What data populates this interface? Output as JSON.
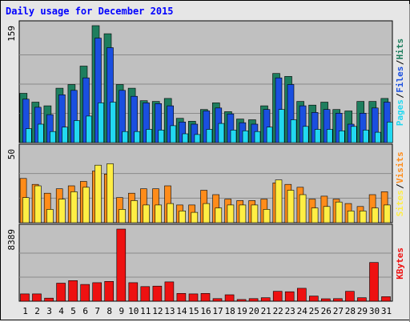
{
  "chart_data": {
    "title": "Daily usage for December 2015",
    "type": "bar",
    "categories": [
      "1",
      "2",
      "3",
      "4",
      "5",
      "6",
      "7",
      "8",
      "9",
      "10",
      "11",
      "12",
      "13",
      "14",
      "15",
      "16",
      "17",
      "18",
      "19",
      "20",
      "21",
      "22",
      "23",
      "24",
      "25",
      "26",
      "27",
      "28",
      "29",
      "30",
      "31"
    ],
    "weekend_days": [
      "5",
      "6",
      "12",
      "13",
      "19",
      "20",
      "26",
      "27"
    ],
    "colors": {
      "hits": "#1e7e5e",
      "files": "#1a4fe0",
      "pages": "#22d8f0",
      "visits": "#ff8c1a",
      "sites": "#ffee44",
      "kbytes": "#ee1111",
      "weekday_label": "#000000",
      "weekend_label": "#1a7a5a",
      "panel_bg": "#c0c0c0",
      "grid": "#8a8a8a"
    },
    "panels": [
      {
        "id": "top",
        "ymax_label": "159",
        "ymax": 159,
        "legend": [
          "Pages",
          "Files",
          "Hits"
        ],
        "legend_colors": [
          "#22d8f0",
          "#1a4fe0",
          "#1e7e5e"
        ],
        "series": [
          {
            "name": "Hits",
            "values": [
              67,
              55,
              50,
              74,
              79,
              104,
              159,
              148,
              79,
              74,
              57,
              56,
              60,
              33,
              29,
              45,
              54,
              42,
              32,
              31,
              50,
              94,
              90,
              56,
              51,
              55,
              45,
              43,
              56,
              56,
              60
            ]
          },
          {
            "name": "Files",
            "values": [
              59,
              48,
              38,
              65,
              71,
              88,
              142,
              129,
              71,
              63,
              54,
              53,
              50,
              28,
              25,
              43,
              47,
              39,
              27,
              25,
              45,
              88,
              79,
              50,
              41,
              45,
              40,
              25,
              40,
              47,
              55
            ]
          },
          {
            "name": "Pages",
            "values": [
              19,
              25,
              15,
              21,
              30,
              36,
              54,
              55,
              15,
              15,
              18,
              17,
              23,
              12,
              11,
              18,
              26,
              17,
              16,
              15,
              21,
              45,
              31,
              22,
              18,
              18,
              16,
              22,
              17,
              14,
              28
            ]
          }
        ]
      },
      {
        "id": "middle",
        "ymax_label": "50",
        "ymax": 50,
        "legend": [
          "Sites",
          "Visits"
        ],
        "legend_colors": [
          "#ffee44",
          "#ff8c1a"
        ],
        "series": [
          {
            "name": "Visits",
            "values": [
              30,
              26,
              20,
              23,
              25,
              28,
              35,
              33,
              17,
              20,
              23,
              23,
              25,
              12,
              12,
              22,
              19,
              16,
              15,
              15,
              16,
              27,
              26,
              24,
              16,
              18,
              16,
              13,
              11,
              19,
              21
            ]
          },
          {
            "name": "Sites",
            "values": [
              17,
              25,
              9,
              16,
              21,
              24,
              39,
              40,
              9,
              15,
              12,
              12,
              13,
              8,
              7,
              13,
              10,
              12,
              12,
              12,
              9,
              29,
              22,
              19,
              10,
              11,
              14,
              8,
              8,
              10,
              12
            ]
          }
        ]
      },
      {
        "id": "bottom",
        "ymax_label": "8389",
        "ymax": 8389,
        "legend": [
          "KBytes"
        ],
        "legend_colors": [
          "#ee1111"
        ],
        "series": [
          {
            "name": "KBytes",
            "values": [
              850,
              850,
              350,
              2100,
              2400,
              1950,
              2150,
              2300,
              8389,
              2150,
              1700,
              1750,
              2250,
              900,
              850,
              900,
              300,
              750,
              200,
              300,
              400,
              1150,
              1100,
              1500,
              600,
              280,
              300,
              1150,
              400,
              4500,
              520
            ]
          }
        ]
      }
    ]
  }
}
